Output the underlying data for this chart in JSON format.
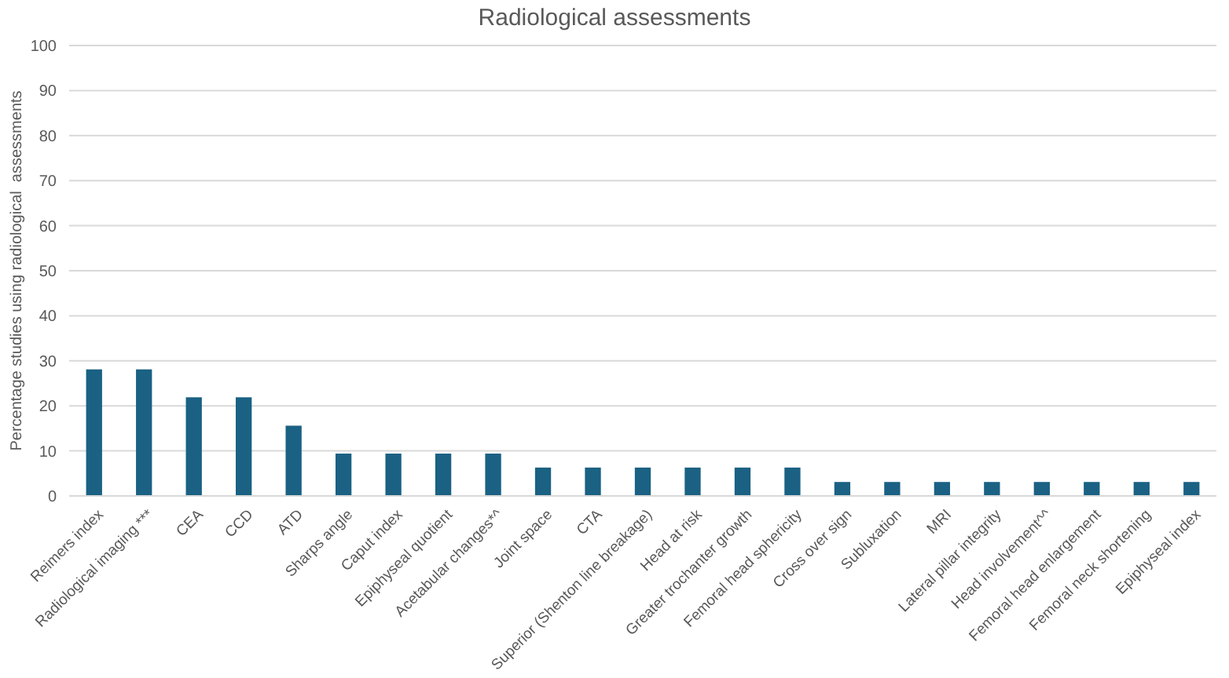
{
  "chart_data": {
    "type": "bar",
    "title": "Radiological assessments",
    "ylabel": "Percentage studies using radiological  assessments",
    "categories": [
      "Reimers index",
      "Radiological imaging ***",
      "CEA",
      "CCD",
      "ATD",
      "Sharps angle",
      "Caput index",
      "Epiphyseal quotient",
      "Acetabular changes*^",
      "Joint space",
      "CTA",
      "Superior (Shenton line breakage)",
      "Head at risk",
      "Greater trochanter growth",
      "Femoral head sphericity",
      "Cross over sign",
      "Subluxation",
      "MRI",
      "Lateral pillar integrity",
      "Head involvement^^",
      "Femoral head enlargement",
      "Femoral neck shortening",
      "Epiphyseal index"
    ],
    "values": [
      28.1,
      28.1,
      21.9,
      21.9,
      15.6,
      9.4,
      9.4,
      9.4,
      9.4,
      6.3,
      6.3,
      6.3,
      6.3,
      6.3,
      6.3,
      3.1,
      3.1,
      3.1,
      3.1,
      3.1,
      3.1,
      3.1,
      3.1
    ],
    "color": "#1a6183",
    "ylim": [
      0,
      100
    ],
    "yticks": [
      0,
      10,
      20,
      30,
      40,
      50,
      60,
      70,
      80,
      90,
      100
    ],
    "grid": "y"
  }
}
